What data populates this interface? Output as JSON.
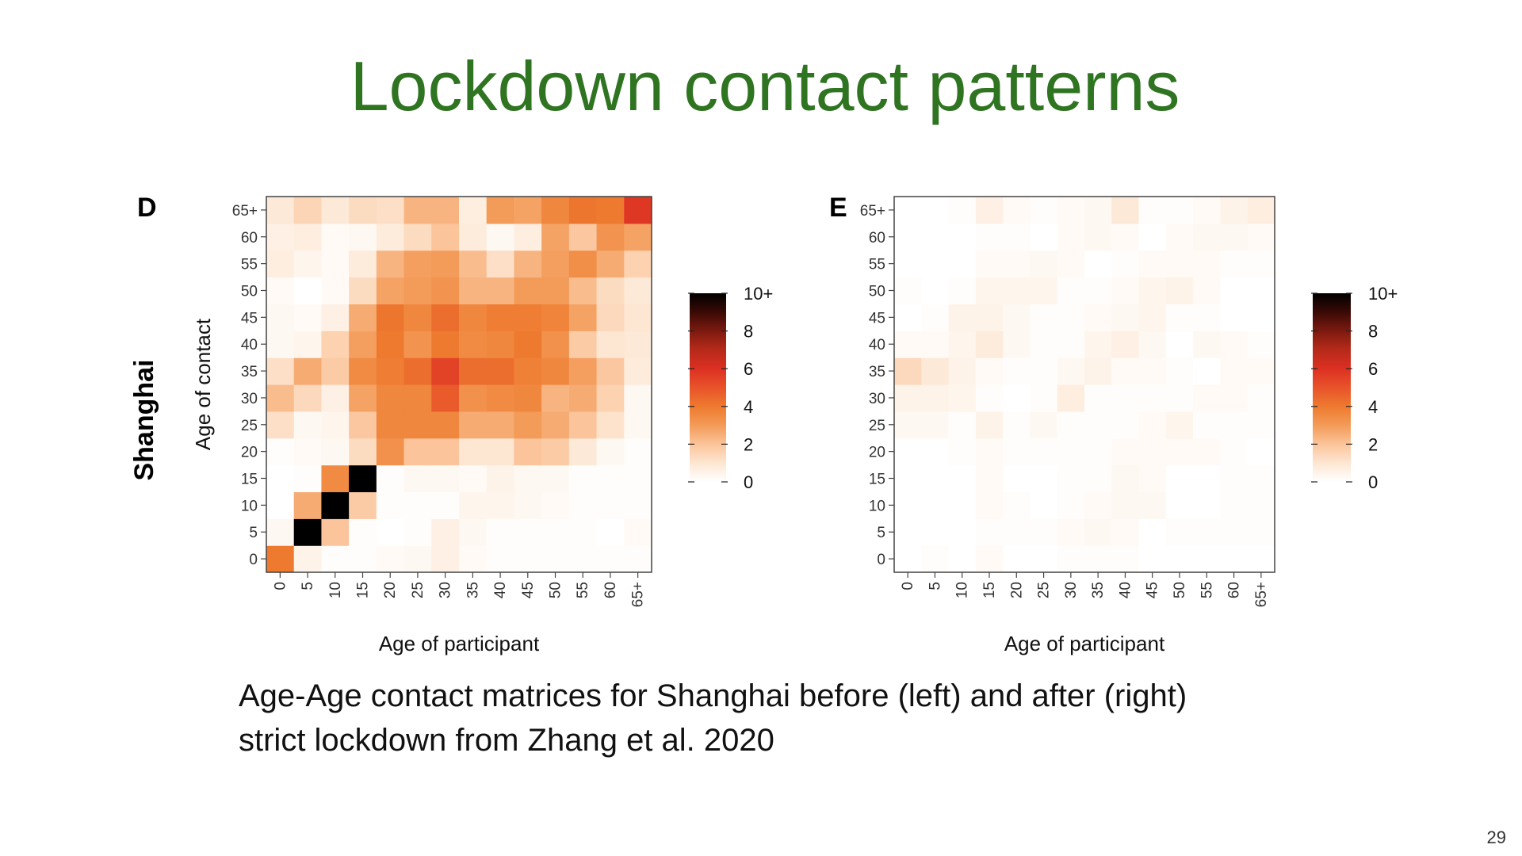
{
  "slide": {
    "title": "Lockdown contact patterns",
    "caption_line1": "Age-Age contact matrices for Shanghai before (left) and after (right)",
    "caption_line2": "strict lockdown from Zhang et al. 2020",
    "page_number": "29",
    "row_label": "Shanghai"
  },
  "colors": {
    "title": "#2f7421",
    "scale": [
      "#ffffff",
      "#fde6d2",
      "#fbc49a",
      "#f39b58",
      "#ee7a2f",
      "#e8532a",
      "#dc3022",
      "#b62a1a",
      "#7d1a10",
      "#3a0a05",
      "#000000"
    ]
  },
  "chart_data": [
    {
      "type": "heatmap",
      "panel": "D",
      "xlabel": "Age of participant",
      "ylabel": "Age of contact",
      "x_categories": [
        "0",
        "5",
        "10",
        "15",
        "20",
        "25",
        "30",
        "35",
        "40",
        "45",
        "50",
        "55",
        "60",
        "65+"
      ],
      "y_categories": [
        "0",
        "5",
        "10",
        "15",
        "20",
        "25",
        "30",
        "35",
        "40",
        "45",
        "50",
        "55",
        "60",
        "65+"
      ],
      "scale_range": [
        0,
        10
      ],
      "legend_ticks": [
        "0",
        "2",
        "4",
        "6",
        "8",
        "10+"
      ],
      "values": [
        [
          4.0,
          0.5,
          0.1,
          0.1,
          0.2,
          0.3,
          0.6,
          0.2,
          0.1,
          0.1,
          0.1,
          0.1,
          0.1,
          0.1
        ],
        [
          0.3,
          10.0,
          2.0,
          0.1,
          0.0,
          0.1,
          0.6,
          0.3,
          0.1,
          0.1,
          0.1,
          0.1,
          0.0,
          0.2
        ],
        [
          0.0,
          2.6,
          10.0,
          1.8,
          0.1,
          0.1,
          0.1,
          0.4,
          0.4,
          0.3,
          0.2,
          0.1,
          0.1,
          0.1
        ],
        [
          0.0,
          0.1,
          3.5,
          10.0,
          0.1,
          0.3,
          0.3,
          0.2,
          0.5,
          0.3,
          0.3,
          0.1,
          0.1,
          0.1
        ],
        [
          0.1,
          0.2,
          0.3,
          1.3,
          3.3,
          2.0,
          2.0,
          1.0,
          1.0,
          2.0,
          1.8,
          0.9,
          0.3,
          0.1
        ],
        [
          1.2,
          0.3,
          0.4,
          1.9,
          3.6,
          3.6,
          3.6,
          2.6,
          2.6,
          3.0,
          2.6,
          2.0,
          1.1,
          0.3
        ],
        [
          2.2,
          1.4,
          0.6,
          2.8,
          3.6,
          3.6,
          4.8,
          3.3,
          3.5,
          3.6,
          2.4,
          2.6,
          1.6,
          0.3
        ],
        [
          1.2,
          2.6,
          1.8,
          3.5,
          3.9,
          4.3,
          5.5,
          4.3,
          4.3,
          3.8,
          3.6,
          2.9,
          1.9,
          0.8
        ],
        [
          0.3,
          0.4,
          1.6,
          2.9,
          4.0,
          3.2,
          4.0,
          3.5,
          3.6,
          4.0,
          3.3,
          1.8,
          1.0,
          0.9
        ],
        [
          0.3,
          0.2,
          0.6,
          2.6,
          4.1,
          3.6,
          4.3,
          3.6,
          3.9,
          3.9,
          3.7,
          2.8,
          1.4,
          1.0
        ],
        [
          0.2,
          0.0,
          0.2,
          1.3,
          2.8,
          3.0,
          3.2,
          2.4,
          2.4,
          3.0,
          3.0,
          2.2,
          1.3,
          0.9
        ],
        [
          0.7,
          0.4,
          0.2,
          0.8,
          2.4,
          2.9,
          3.0,
          2.2,
          1.2,
          2.4,
          2.9,
          3.4,
          2.6,
          1.6
        ],
        [
          0.6,
          0.7,
          0.2,
          0.3,
          0.8,
          1.3,
          2.0,
          0.8,
          0.3,
          0.7,
          2.8,
          1.9,
          3.2,
          2.8
        ],
        [
          0.9,
          1.5,
          0.9,
          1.3,
          1.2,
          2.4,
          2.4,
          0.7,
          3.0,
          2.8,
          3.6,
          4.1,
          4.0,
          5.8
        ]
      ]
    },
    {
      "type": "heatmap",
      "panel": "E",
      "xlabel": "Age of participant",
      "ylabel": "",
      "x_categories": [
        "0",
        "5",
        "10",
        "15",
        "20",
        "25",
        "30",
        "35",
        "40",
        "45",
        "50",
        "55",
        "60",
        "65+"
      ],
      "y_categories": [
        "0",
        "5",
        "10",
        "15",
        "20",
        "25",
        "30",
        "35",
        "40",
        "45",
        "50",
        "55",
        "60",
        "65+"
      ],
      "scale_range": [
        0,
        10
      ],
      "legend_ticks": [
        "0",
        "2",
        "4",
        "6",
        "8",
        "10+"
      ],
      "values": [
        [
          0.0,
          0.1,
          0.0,
          0.2,
          0.0,
          0.0,
          0.1,
          0.1,
          0.1,
          0.0,
          0.0,
          0.0,
          0.0,
          0.0
        ],
        [
          0.0,
          0.0,
          0.0,
          0.1,
          0.1,
          0.1,
          0.2,
          0.3,
          0.2,
          0.0,
          0.1,
          0.1,
          0.1,
          0.1
        ],
        [
          0.0,
          0.0,
          0.0,
          0.2,
          0.1,
          0.0,
          0.1,
          0.2,
          0.3,
          0.3,
          0.0,
          0.0,
          0.1,
          0.1
        ],
        [
          0.0,
          0.0,
          0.0,
          0.2,
          0.0,
          0.0,
          0.1,
          0.1,
          0.3,
          0.2,
          0.0,
          0.0,
          0.1,
          0.1
        ],
        [
          0.0,
          0.0,
          0.1,
          0.2,
          0.1,
          0.1,
          0.1,
          0.1,
          0.2,
          0.2,
          0.2,
          0.2,
          0.1,
          0.0
        ],
        [
          0.3,
          0.3,
          0.1,
          0.5,
          0.1,
          0.3,
          0.1,
          0.1,
          0.1,
          0.2,
          0.4,
          0.1,
          0.1,
          0.1
        ],
        [
          0.5,
          0.5,
          0.4,
          0.1,
          0.0,
          0.1,
          0.7,
          0.1,
          0.1,
          0.1,
          0.1,
          0.2,
          0.2,
          0.1
        ],
        [
          1.4,
          0.9,
          0.5,
          0.2,
          0.1,
          0.1,
          0.3,
          0.5,
          0.2,
          0.2,
          0.1,
          0.0,
          0.2,
          0.2
        ],
        [
          0.2,
          0.2,
          0.4,
          0.8,
          0.3,
          0.1,
          0.1,
          0.4,
          0.6,
          0.3,
          0.0,
          0.3,
          0.2,
          0.1
        ],
        [
          0.0,
          0.1,
          0.5,
          0.5,
          0.3,
          0.1,
          0.1,
          0.2,
          0.3,
          0.4,
          0.1,
          0.1,
          0.0,
          0.0
        ],
        [
          0.1,
          0.0,
          0.1,
          0.4,
          0.4,
          0.4,
          0.1,
          0.1,
          0.2,
          0.4,
          0.5,
          0.2,
          0.0,
          0.0
        ],
        [
          0.0,
          0.0,
          0.0,
          0.2,
          0.2,
          0.3,
          0.2,
          0.0,
          0.1,
          0.2,
          0.2,
          0.2,
          0.1,
          0.1
        ],
        [
          0.0,
          0.0,
          0.0,
          0.1,
          0.1,
          0.0,
          0.2,
          0.3,
          0.2,
          0.0,
          0.2,
          0.3,
          0.3,
          0.2
        ],
        [
          0.0,
          0.0,
          0.1,
          0.6,
          0.2,
          0.1,
          0.2,
          0.3,
          0.9,
          0.1,
          0.1,
          0.2,
          0.5,
          0.7
        ]
      ]
    }
  ]
}
